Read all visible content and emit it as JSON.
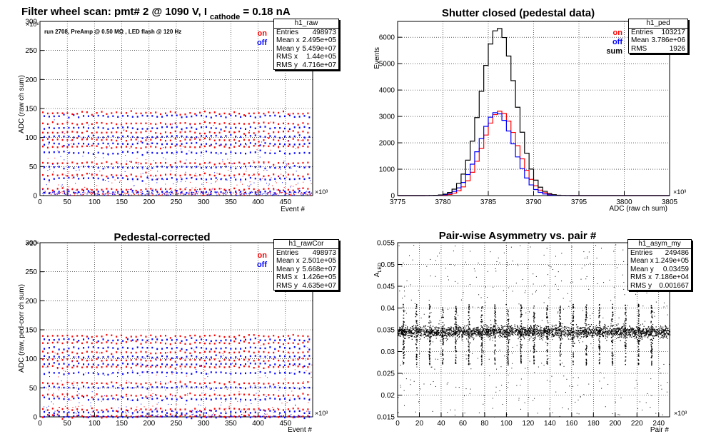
{
  "panels": [
    {
      "id": "raw",
      "title_parts": [
        "Filter wheel scan: pmt#   2 @  1090 V, I",
        "cathode",
        " = 0.18 nA"
      ],
      "annotation": "run 2708, PreAmp @ 0.50 MΩ , LED flash @  120 Hz",
      "xlabel": "Event #",
      "ylabel": "ADC (raw ch sum)",
      "x_exponent": "×10³",
      "y_exponent": "×10⁶",
      "legend": [
        {
          "label": "on",
          "color": "#ff0000"
        },
        {
          "label": "off",
          "color": "#0000ff"
        }
      ],
      "stats": {
        "name": "h1_raw",
        "rows": [
          [
            "Entries",
            "498973"
          ],
          [
            "Mean x",
            "2.495e+05"
          ],
          [
            "Mean y",
            "5.459e+07"
          ],
          [
            "RMS x",
            "1.44e+05"
          ],
          [
            "RMS y",
            "4.716e+07"
          ]
        ]
      }
    },
    {
      "id": "ped",
      "title": "Shutter closed (pedestal data)",
      "xlabel": "ADC (raw ch sum)",
      "ylabel": "Events",
      "x_exponent": "×10³",
      "legend": [
        {
          "label": "on",
          "color": "#ff0000"
        },
        {
          "label": "off",
          "color": "#0000ff"
        },
        {
          "label": "sum",
          "color": "#000000"
        }
      ],
      "stats": {
        "name": "h1_ped",
        "rows": [
          [
            "Entries",
            "103217"
          ],
          [
            "Mean",
            "3.786e+06"
          ],
          [
            "RMS",
            "1926"
          ]
        ]
      }
    },
    {
      "id": "cor",
      "title": "Pedestal-corrected",
      "xlabel": "Event #",
      "ylabel": "ADC (raw, ped-corr ch sum)",
      "x_exponent": "×10³",
      "y_exponent": "×10⁶",
      "legend": [
        {
          "label": "on",
          "color": "#ff0000"
        },
        {
          "label": "off",
          "color": "#0000ff"
        }
      ],
      "stats": {
        "name": "h1_rawCor",
        "rows": [
          [
            "Entries",
            "498973"
          ],
          [
            "Mean x",
            "2.501e+05"
          ],
          [
            "Mean y",
            "5.668e+07"
          ],
          [
            "RMS x",
            "1.426e+05"
          ],
          [
            "RMS y",
            "4.635e+07"
          ]
        ]
      }
    },
    {
      "id": "asym",
      "title": "Pair-wise Asymmetry vs. pair #",
      "xlabel": "Pair #",
      "ylabel": "A",
      "ylabel_sub": "LED",
      "x_exponent": "×10³",
      "stats": {
        "name": "h1_asym_my",
        "rows": [
          [
            "Entries",
            "249486"
          ],
          [
            "Mean x",
            "1.249e+05"
          ],
          [
            "Mean y",
            "0.03459"
          ],
          [
            "RMS x",
            "7.186e+04"
          ],
          [
            "RMS y",
            "0.001667"
          ]
        ]
      }
    }
  ],
  "chart_data": [
    {
      "type": "scatter",
      "title": "Filter wheel scan: pmt#   2 @  1090 V, I cathode = 0.18 nA",
      "xlabel": "Event #",
      "ylabel": "ADC (raw ch sum)",
      "x_units": "×10³ events",
      "y_units": "×10⁶ ADC",
      "xlim": [
        0,
        500
      ],
      "ylim": [
        0,
        300
      ],
      "xticks": [
        0,
        50,
        100,
        150,
        200,
        250,
        300,
        350,
        400,
        450
      ],
      "yticks": [
        0,
        50,
        100,
        150,
        200,
        250,
        300
      ],
      "grid": true,
      "series": [
        {
          "name": "on",
          "color": "#ff0000",
          "levels": [
            0,
            12,
            36,
            57,
            85,
            97,
            110,
            125,
            143
          ]
        },
        {
          "name": "off",
          "color": "#0000ff",
          "levels": [
            0,
            8,
            30,
            50,
            75,
            90,
            103,
            118,
            138
          ]
        }
      ]
    },
    {
      "type": "line",
      "title": "Shutter closed (pedestal data)",
      "xlabel": "ADC (raw ch sum)",
      "ylabel": "Events",
      "x_units": "×10³ ADC",
      "xlim": [
        3775,
        3805
      ],
      "ylim": [
        0,
        6600
      ],
      "xticks": [
        3775,
        3780,
        3785,
        3790,
        3795,
        3800,
        3805
      ],
      "yticks": [
        0,
        1000,
        2000,
        3000,
        4000,
        5000,
        6000
      ],
      "grid": true,
      "series": [
        {
          "name": "on",
          "color": "#ff0000",
          "mean": 3786.3,
          "sigma": 1.9,
          "peak": 3200
        },
        {
          "name": "off",
          "color": "#0000ff",
          "mean": 3785.9,
          "sigma": 1.9,
          "peak": 3150
        },
        {
          "name": "sum",
          "color": "#000000",
          "mean": 3786.1,
          "sigma": 1.9,
          "peak": 6350
        }
      ]
    },
    {
      "type": "scatter",
      "title": "Pedestal-corrected",
      "xlabel": "Event #",
      "ylabel": "ADC (raw, ped-corr ch sum)",
      "x_units": "×10³ events",
      "y_units": "×10⁶ ADC",
      "xlim": [
        0,
        500
      ],
      "ylim": [
        0,
        300
      ],
      "xticks": [
        0,
        50,
        100,
        150,
        200,
        250,
        300,
        350,
        400,
        450
      ],
      "yticks": [
        0,
        50,
        100,
        150,
        200,
        250,
        300
      ],
      "grid": true,
      "series": [
        {
          "name": "on",
          "color": "#ff0000",
          "levels": [
            2,
            14,
            38,
            59,
            87,
            99,
            112,
            128,
            140
          ]
        },
        {
          "name": "off",
          "color": "#0000ff",
          "levels": [
            2,
            10,
            32,
            52,
            77,
            92,
            105,
            120,
            134
          ]
        }
      ]
    },
    {
      "type": "scatter",
      "title": "Pair-wise Asymmetry vs. pair #",
      "xlabel": "Pair #",
      "ylabel": "A LED",
      "x_units": "×10³ pairs",
      "xlim": [
        0,
        250
      ],
      "ylim": [
        0.015,
        0.055
      ],
      "xticks": [
        0,
        20,
        40,
        60,
        80,
        100,
        120,
        140,
        160,
        180,
        200,
        220,
        240
      ],
      "yticks": [
        0.015,
        0.02,
        0.025,
        0.03,
        0.035,
        0.04,
        0.045,
        0.05,
        0.055
      ],
      "grid": true,
      "band_center": 0.0346,
      "band_halfwidth": 0.0012,
      "spike_positions": [
        5,
        17,
        29,
        41,
        53,
        65,
        77,
        89,
        101,
        113,
        125,
        137,
        149,
        161,
        173,
        185,
        197,
        209,
        221,
        233
      ],
      "spike_range": [
        0.027,
        0.041
      ]
    }
  ]
}
